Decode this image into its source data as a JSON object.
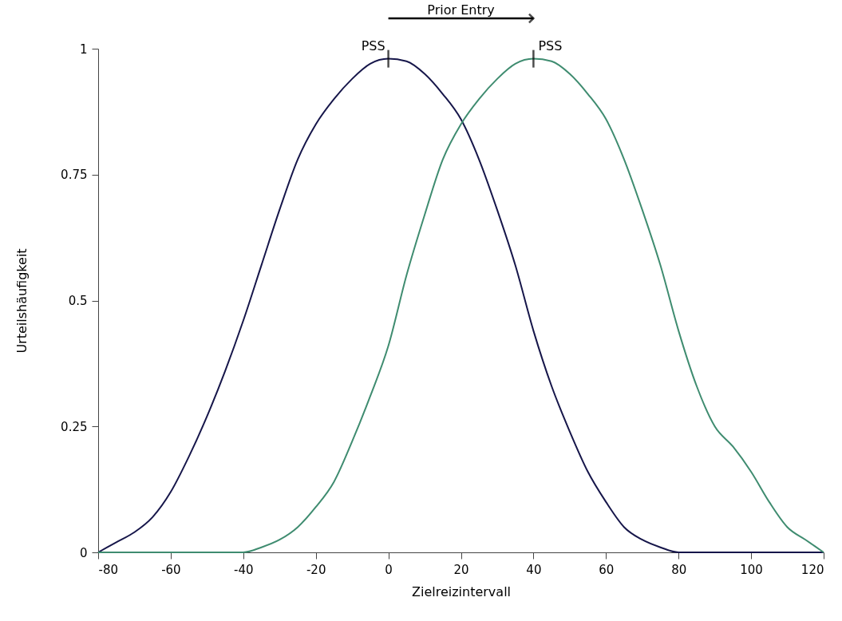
{
  "chart_data": {
    "type": "line",
    "xlabel": "Zielreizintervall",
    "ylabel": "Urteilshäufigkeit",
    "xlim": [
      -80,
      120
    ],
    "xticks": [
      -80,
      -60,
      -40,
      -20,
      0,
      20,
      40,
      60,
      80,
      100,
      120
    ],
    "ylim": [
      0,
      1
    ],
    "yticks": [
      0,
      0.25,
      0.5,
      0.75,
      1
    ],
    "grid": false,
    "marker": "none",
    "line_style": "solid",
    "series": [
      {
        "color": "#16164a",
        "x": [
          -80,
          -75,
          -70,
          -65,
          -60,
          -55,
          -50,
          -45,
          -40,
          -35,
          -30,
          -25,
          -20,
          -15,
          -10,
          -5,
          0,
          5,
          10,
          15,
          20,
          25,
          30,
          35,
          40,
          45,
          50,
          55,
          60,
          65,
          70,
          75,
          80,
          120
        ],
        "values": [
          0,
          0.02,
          0.04,
          0.07,
          0.12,
          0.19,
          0.27,
          0.36,
          0.46,
          0.57,
          0.68,
          0.78,
          0.85,
          0.9,
          0.94,
          0.97,
          0.98,
          0.975,
          0.95,
          0.91,
          0.86,
          0.78,
          0.68,
          0.57,
          0.44,
          0.33,
          0.24,
          0.16,
          0.1,
          0.05,
          0.025,
          0.01,
          0,
          0
        ]
      },
      {
        "color": "#3f8c70",
        "x": [
          -80,
          -40,
          -35,
          -30,
          -25,
          -20,
          -15,
          -10,
          -5,
          0,
          5,
          10,
          15,
          20,
          25,
          30,
          35,
          40,
          45,
          50,
          55,
          60,
          65,
          70,
          75,
          80,
          85,
          90,
          95,
          100,
          105,
          110,
          115,
          120
        ],
        "values": [
          0,
          0,
          0.01,
          0.025,
          0.05,
          0.09,
          0.14,
          0.22,
          0.31,
          0.41,
          0.55,
          0.67,
          0.78,
          0.85,
          0.9,
          0.94,
          0.97,
          0.98,
          0.975,
          0.95,
          0.91,
          0.86,
          0.78,
          0.68,
          0.57,
          0.44,
          0.33,
          0.25,
          0.21,
          0.16,
          0.1,
          0.05,
          0.025,
          0
        ]
      }
    ],
    "annotations": [
      {
        "text": "PSS",
        "x": 0,
        "y": 0.98
      },
      {
        "text": "PSS",
        "x": 40,
        "y": 0.98
      },
      "Prior Entry"
    ]
  }
}
